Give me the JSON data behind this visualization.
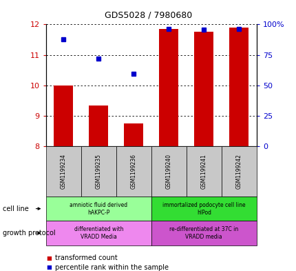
{
  "title": "GDS5028 / 7980680",
  "samples": [
    "GSM1199234",
    "GSM1199235",
    "GSM1199236",
    "GSM1199240",
    "GSM1199241",
    "GSM1199242"
  ],
  "bar_values": [
    10.0,
    9.35,
    8.75,
    11.85,
    11.75,
    11.9
  ],
  "bar_bottom": [
    8.0,
    8.0,
    8.0,
    8.0,
    8.0,
    8.0
  ],
  "scatter_values": [
    11.52,
    10.87,
    10.38,
    11.85,
    11.82,
    11.85
  ],
  "ylim": [
    8.0,
    12.0
  ],
  "y2lim": [
    0,
    100
  ],
  "yticks": [
    8,
    9,
    10,
    11,
    12
  ],
  "y2ticks": [
    0,
    25,
    50,
    75,
    100
  ],
  "bar_color": "#cc0000",
  "scatter_color": "#0000cc",
  "cell_line_groups": [
    {
      "label": "amniotic fluid derived\nhAKPC-P",
      "start": 0,
      "end": 3,
      "color": "#99ff99"
    },
    {
      "label": "immortalized podocyte cell line\nhIPod",
      "start": 3,
      "end": 6,
      "color": "#33dd33"
    }
  ],
  "growth_protocol_groups": [
    {
      "label": "differentiated with\nVRADD Media",
      "start": 0,
      "end": 3,
      "color": "#ee88ee"
    },
    {
      "label": "re-differentiated at 37C in\nVRADD media",
      "start": 3,
      "end": 6,
      "color": "#cc55cc"
    }
  ],
  "cell_line_label": "cell line",
  "growth_protocol_label": "growth protocol",
  "legend_bar_label": "transformed count",
  "legend_scatter_label": "percentile rank within the sample",
  "left_color": "#cc0000",
  "right_color": "#0000cc",
  "title_color": "#000000",
  "sample_bg_color": "#c8c8c8",
  "bar_width": 0.55
}
